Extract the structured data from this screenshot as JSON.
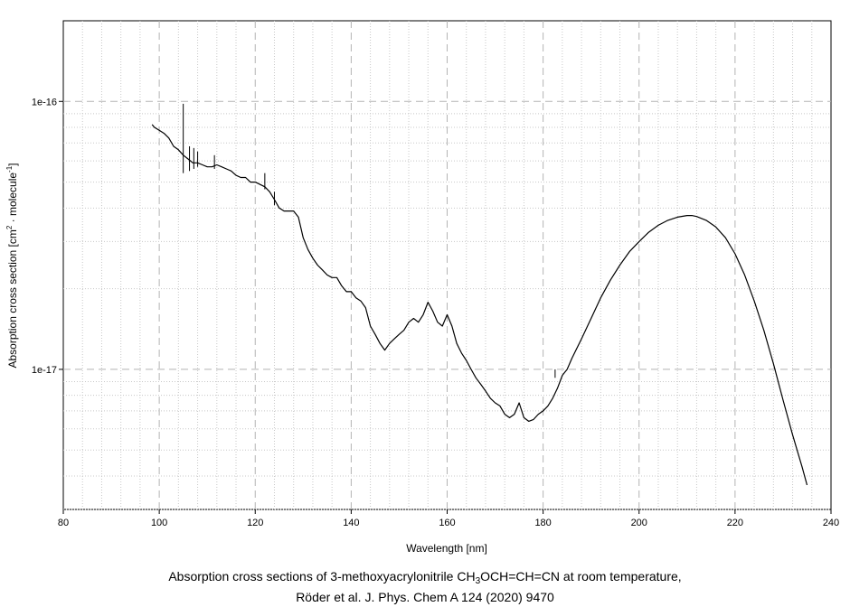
{
  "chart_data": {
    "type": "line",
    "xlabel": "Wavelength [nm]",
    "ylabel": {
      "prefix": "Absorption cross section [cm",
      "sup1": "2",
      "middle": " · molecule",
      "sup2": "-1",
      "suffix": "]"
    },
    "xlim": [
      80,
      240
    ],
    "ylim": [
      3e-18,
      2e-16
    ],
    "y_scale": "log",
    "x_ticks": [
      80,
      100,
      120,
      140,
      160,
      180,
      200,
      220,
      240
    ],
    "x_tick_labels": [
      "80",
      "100",
      "120",
      "140",
      "160",
      "180",
      "200",
      "220",
      "240"
    ],
    "y_ticks": [
      1e-17,
      1e-16
    ],
    "y_tick_labels": [
      "1e-17",
      "1e-16"
    ],
    "grid": true,
    "legend": "none",
    "series": [
      {
        "color": "#000000",
        "x": [
          98.5,
          99,
          100,
          101,
          102,
          103,
          104,
          105,
          106,
          107,
          108,
          109,
          110,
          111,
          112,
          113,
          114,
          115,
          116,
          117,
          118,
          119,
          120,
          121,
          122,
          123,
          124,
          125,
          126,
          127,
          128,
          129,
          130,
          131,
          132,
          133,
          134,
          135,
          136,
          137,
          138,
          139,
          140,
          141,
          142,
          143,
          144,
          145,
          146,
          147,
          148,
          149,
          150,
          151,
          152,
          153,
          154,
          155,
          156,
          157,
          158,
          159,
          160,
          161,
          162,
          163,
          164,
          165,
          166,
          167,
          168,
          169,
          170,
          171,
          172,
          173,
          174,
          175,
          176,
          177,
          178,
          179,
          180,
          181,
          182,
          183,
          184,
          185,
          186,
          188,
          190,
          192,
          194,
          196,
          198,
          200,
          202,
          204,
          206,
          208,
          210,
          211,
          212,
          214,
          216,
          218,
          220,
          222,
          224,
          226,
          228,
          230,
          232,
          234,
          235
        ],
        "y": [
          8.2e-17,
          8e-17,
          7.8e-17,
          7.6e-17,
          7.3e-17,
          6.8e-17,
          6.6e-17,
          6.3e-17,
          6.1e-17,
          5.9e-17,
          5.9e-17,
          5.8e-17,
          5.7e-17,
          5.7e-17,
          5.8e-17,
          5.7e-17,
          5.6e-17,
          5.5e-17,
          5.3e-17,
          5.2e-17,
          5.2e-17,
          5e-17,
          5e-17,
          4.9e-17,
          4.8e-17,
          4.6e-17,
          4.3e-17,
          4e-17,
          3.9e-17,
          3.9e-17,
          3.9e-17,
          3.7e-17,
          3.1e-17,
          2.8e-17,
          2.6e-17,
          2.45e-17,
          2.35e-17,
          2.25e-17,
          2.2e-17,
          2.2e-17,
          2.05e-17,
          1.95e-17,
          1.95e-17,
          1.85e-17,
          1.8e-17,
          1.7e-17,
          1.45e-17,
          1.35e-17,
          1.25e-17,
          1.18e-17,
          1.25e-17,
          1.3e-17,
          1.35e-17,
          1.4e-17,
          1.5e-17,
          1.55e-17,
          1.5e-17,
          1.6e-17,
          1.78e-17,
          1.65e-17,
          1.5e-17,
          1.45e-17,
          1.6e-17,
          1.45e-17,
          1.25e-17,
          1.15e-17,
          1.08e-17,
          1e-17,
          9.3e-18,
          8.8e-18,
          8.3e-18,
          7.8e-18,
          7.5e-18,
          7.3e-18,
          6.8e-18,
          6.6e-18,
          6.8e-18,
          7.5e-18,
          6.6e-18,
          6.4e-18,
          6.5e-18,
          6.8e-18,
          7e-18,
          7.3e-18,
          7.8e-18,
          8.5e-18,
          9.5e-18,
          1e-17,
          1.1e-17,
          1.3e-17,
          1.55e-17,
          1.85e-17,
          2.15e-17,
          2.45e-17,
          2.75e-17,
          3e-17,
          3.25e-17,
          3.45e-17,
          3.6e-17,
          3.7e-17,
          3.75e-17,
          3.75e-17,
          3.72e-17,
          3.6e-17,
          3.4e-17,
          3.1e-17,
          2.7e-17,
          2.25e-17,
          1.8e-17,
          1.4e-17,
          1.05e-17,
          7.7e-18,
          5.7e-18,
          4.3e-18,
          3.7e-18
        ]
      }
    ],
    "spikes": [
      {
        "x": 105.0,
        "y_low": 5.4e-17,
        "y_high": 9.8e-17
      },
      {
        "x": 106.3,
        "y_low": 5.5e-17,
        "y_high": 6.8e-17
      },
      {
        "x": 107.2,
        "y_low": 5.6e-17,
        "y_high": 6.7e-17
      },
      {
        "x": 108.0,
        "y_low": 5.7e-17,
        "y_high": 6.5e-17
      },
      {
        "x": 111.5,
        "y_low": 5.6e-17,
        "y_high": 6.3e-17
      },
      {
        "x": 122.0,
        "y_low": 4.7e-17,
        "y_high": 5.4e-17
      },
      {
        "x": 124.0,
        "y_low": 4.1e-17,
        "y_high": 4.6e-17
      },
      {
        "x": 182.5,
        "y_low": 9.3e-18,
        "y_high": 1e-17
      }
    ]
  },
  "caption": {
    "line1_prefix": "Absorption cross sections of 3-methoxyacrylonitrile CH",
    "line1_sub": "3",
    "line1_suffix": "OCH=CH=CN at room temperature,",
    "line2": "Röder et al. J. Phys. Chem A 124 (2020) 9470"
  }
}
